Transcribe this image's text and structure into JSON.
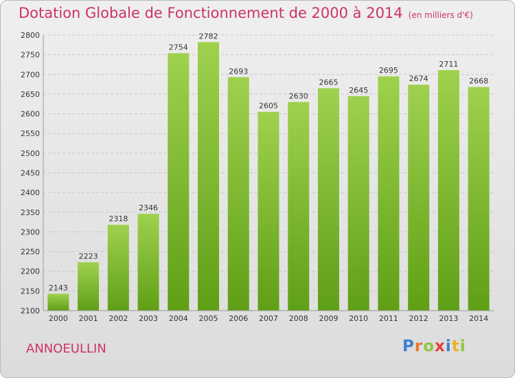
{
  "header": {
    "title": "Dotation Globale de Fonctionnement de 2000 à 2014",
    "subtitle": "(en milliers d'€)"
  },
  "footer": {
    "place": "ANNOEULLIN",
    "logo_letters": [
      "P",
      "r",
      "o",
      "x",
      "i",
      "t",
      "i"
    ],
    "logo_colors": [
      "#3b7fd0",
      "#e8772e",
      "#8cc63f",
      "#e23d3d",
      "#3b7fd0",
      "#f2b01e",
      "#8cc63f"
    ]
  },
  "colors": {
    "title": "#cc3366",
    "bar_light": "#9fd14e",
    "bar_dark": "#5f9f16",
    "gridline": "#c8c8c8",
    "text": "#333333"
  },
  "chart_data": {
    "type": "bar",
    "title": "Dotation Globale de Fonctionnement de 2000 à 2014",
    "subtitle": "(en milliers d'€)",
    "xlabel": "",
    "ylabel": "",
    "categories": [
      "2000",
      "2001",
      "2002",
      "2003",
      "2004",
      "2005",
      "2006",
      "2007",
      "2008",
      "2009",
      "2010",
      "2011",
      "2012",
      "2013",
      "2014"
    ],
    "values": [
      2143,
      2223,
      2318,
      2346,
      2754,
      2782,
      2693,
      2605,
      2630,
      2665,
      2645,
      2695,
      2674,
      2711,
      2668
    ],
    "ylim": [
      2100,
      2800
    ],
    "yticks": [
      2100,
      2150,
      2200,
      2250,
      2300,
      2350,
      2400,
      2450,
      2500,
      2550,
      2600,
      2650,
      2700,
      2750,
      2800
    ],
    "grid": true,
    "data_labels": true
  }
}
